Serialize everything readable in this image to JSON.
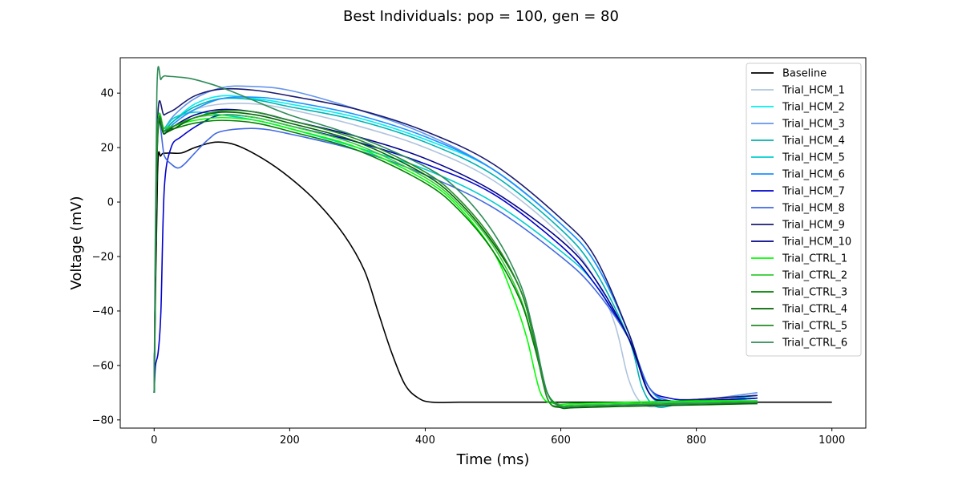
{
  "chart_data": {
    "type": "line",
    "title": "Best Individuals: pop = 100, gen = 80",
    "xlabel": "Time (ms)",
    "ylabel": "Voltage (mV)",
    "xlim": [
      -50,
      1050
    ],
    "ylim": [
      -83,
      53
    ],
    "xticks": [
      0,
      200,
      400,
      600,
      800,
      1000
    ],
    "yticks": [
      -80,
      -60,
      -40,
      -20,
      0,
      20,
      40
    ],
    "legend_position": "top-right",
    "grid": false,
    "series": [
      {
        "name": "Baseline",
        "color": "#000000",
        "x": [
          0,
          5,
          10,
          20,
          40,
          60,
          90,
          120,
          160,
          200,
          240,
          280,
          310,
          330,
          350,
          370,
          390,
          410,
          450,
          500,
          600,
          700,
          800,
          900,
          1000
        ],
        "y": [
          -70,
          10,
          17,
          18,
          18,
          20,
          22,
          21,
          16,
          9,
          0,
          -12,
          -25,
          -40,
          -55,
          -67,
          -72,
          -73.5,
          -73.5,
          -73.5,
          -73.5,
          -73.5,
          -73.5,
          -73.5,
          -73.5
        ]
      },
      {
        "name": "Trial_HCM_1",
        "color": "#b0c4de",
        "x": [
          0,
          5,
          15,
          30,
          60,
          100,
          150,
          200,
          300,
          400,
          500,
          600,
          650,
          680,
          700,
          720,
          750,
          800,
          890
        ],
        "y": [
          -70,
          25,
          27,
          30,
          34,
          36,
          36,
          34,
          28,
          20,
          8,
          -12,
          -28,
          -45,
          -65,
          -74,
          -75,
          -73,
          -70
        ]
      },
      {
        "name": "Trial_HCM_2",
        "color": "#00eeee",
        "x": [
          0,
          5,
          15,
          30,
          60,
          100,
          150,
          200,
          300,
          400,
          500,
          600,
          650,
          700,
          730,
          760,
          800,
          890
        ],
        "y": [
          -70,
          24,
          26,
          30,
          36,
          39,
          38,
          36,
          31,
          23,
          12,
          -8,
          -22,
          -48,
          -70,
          -74,
          -74,
          -71
        ]
      },
      {
        "name": "Trial_HCM_3",
        "color": "#6495ed",
        "x": [
          0,
          5,
          15,
          30,
          60,
          100,
          140,
          200,
          300,
          400,
          500,
          600,
          650,
          700,
          730,
          760,
          800,
          890
        ],
        "y": [
          -70,
          25,
          27,
          32,
          38,
          42,
          42.5,
          41,
          34,
          25,
          12,
          -8,
          -22,
          -48,
          -70,
          -74,
          -73,
          -70
        ]
      },
      {
        "name": "Trial_HCM_4",
        "color": "#00b2b2",
        "x": [
          0,
          5,
          15,
          30,
          60,
          100,
          150,
          200,
          300,
          400,
          500,
          600,
          650,
          700,
          720,
          740,
          770,
          800,
          890
        ],
        "y": [
          -70,
          24,
          26,
          30,
          35,
          38,
          37.5,
          35,
          30,
          22,
          10,
          -10,
          -25,
          -50,
          -68,
          -75,
          -74.5,
          -74,
          -72
        ]
      },
      {
        "name": "Trial_HCM_5",
        "color": "#00ced1",
        "x": [
          0,
          5,
          15,
          30,
          60,
          100,
          150,
          200,
          300,
          400,
          500,
          600,
          650,
          700,
          730,
          760,
          800,
          890
        ],
        "y": [
          -70,
          25,
          27,
          31,
          33,
          32,
          30,
          27,
          20,
          12,
          0,
          -18,
          -30,
          -50,
          -68,
          -74,
          -74,
          -72
        ]
      },
      {
        "name": "Trial_HCM_6",
        "color": "#1e90ff",
        "x": [
          0,
          5,
          15,
          30,
          60,
          100,
          150,
          200,
          300,
          400,
          500,
          600,
          650,
          700,
          730,
          760,
          800,
          890
        ],
        "y": [
          -70,
          23,
          25,
          29,
          34,
          38,
          38.5,
          37,
          32,
          24,
          12,
          -8,
          -22,
          -48,
          -70,
          -74,
          -73.5,
          -72
        ]
      },
      {
        "name": "Trial_HCM_7",
        "color": "#0000cd",
        "x": [
          0,
          2,
          6,
          10,
          15,
          25,
          40,
          70,
          100,
          150,
          200,
          300,
          400,
          500,
          600,
          650,
          700,
          730,
          760,
          800,
          890
        ],
        "y": [
          -70,
          -60,
          -55,
          -40,
          5,
          20,
          24,
          29,
          32,
          31,
          28,
          22,
          14,
          3,
          -16,
          -30,
          -50,
          -68,
          -72,
          -72.5,
          -71
        ]
      },
      {
        "name": "Trial_HCM_8",
        "color": "#4169e1",
        "x": [
          0,
          5,
          15,
          25,
          35,
          45,
          60,
          80,
          100,
          150,
          200,
          300,
          400,
          500,
          600,
          650,
          700,
          730,
          760,
          800,
          890
        ],
        "y": [
          -70,
          25,
          17,
          14,
          12.5,
          14,
          18,
          23,
          26,
          27,
          25,
          19,
          10,
          -2,
          -20,
          -32,
          -50,
          -68,
          -73,
          -73,
          -72
        ]
      },
      {
        "name": "Trial_HCM_9",
        "color": "#191970",
        "x": [
          0,
          5,
          15,
          30,
          60,
          100,
          150,
          200,
          300,
          400,
          500,
          600,
          650,
          700,
          730,
          760,
          800,
          890
        ],
        "y": [
          -70,
          29,
          32,
          34,
          39,
          41.5,
          41,
          39,
          34,
          26,
          14,
          -6,
          -20,
          -48,
          -70,
          -73,
          -72.5,
          -71
        ]
      },
      {
        "name": "Trial_HCM_10",
        "color": "#00008b",
        "x": [
          0,
          5,
          15,
          30,
          60,
          100,
          150,
          200,
          300,
          400,
          500,
          600,
          650,
          700,
          730,
          760,
          800,
          890
        ],
        "y": [
          -70,
          24,
          25,
          28,
          32,
          34,
          33,
          30,
          24,
          16,
          4,
          -14,
          -28,
          -50,
          -70,
          -73,
          -73,
          -72
        ]
      },
      {
        "name": "Trial_CTRL_1",
        "color": "#00ff00",
        "x": [
          0,
          5,
          15,
          30,
          60,
          100,
          150,
          200,
          300,
          400,
          450,
          500,
          530,
          550,
          570,
          590,
          620,
          700,
          800,
          890
        ],
        "y": [
          -70,
          25,
          27,
          28,
          30,
          31,
          30,
          27,
          20,
          8,
          -2,
          -18,
          -35,
          -50,
          -70,
          -74,
          -74,
          -73.5,
          -73,
          -73
        ]
      },
      {
        "name": "Trial_CTRL_2",
        "color": "#32cd32",
        "x": [
          0,
          5,
          15,
          30,
          60,
          100,
          150,
          200,
          300,
          400,
          450,
          500,
          540,
          560,
          580,
          600,
          620,
          700,
          800,
          890
        ],
        "y": [
          -70,
          25,
          27,
          28,
          31,
          32,
          31,
          28,
          21,
          9,
          -1,
          -16,
          -35,
          -52,
          -70,
          -74.5,
          -74.5,
          -74,
          -73.5,
          -73
        ]
      },
      {
        "name": "Trial_CTRL_3",
        "color": "#008000",
        "x": [
          0,
          5,
          15,
          30,
          60,
          100,
          150,
          200,
          300,
          400,
          450,
          500,
          540,
          560,
          580,
          600,
          620,
          700,
          800,
          890
        ],
        "y": [
          -70,
          24,
          26,
          27,
          29,
          30,
          29,
          26,
          19,
          7,
          -3,
          -18,
          -36,
          -52,
          -70,
          -75,
          -75,
          -74.5,
          -74,
          -74
        ]
      },
      {
        "name": "Trial_CTRL_4",
        "color": "#006400",
        "x": [
          0,
          5,
          15,
          30,
          60,
          100,
          150,
          200,
          300,
          400,
          450,
          500,
          540,
          560,
          580,
          600,
          620,
          700,
          800,
          890
        ],
        "y": [
          -70,
          22,
          25,
          27,
          31,
          33,
          32,
          29,
          22,
          10,
          0,
          -15,
          -32,
          -50,
          -72,
          -75.5,
          -75.5,
          -75,
          -74.5,
          -74
        ]
      },
      {
        "name": "Trial_CTRL_5",
        "color": "#228b22",
        "x": [
          0,
          5,
          15,
          30,
          60,
          100,
          150,
          200,
          300,
          400,
          450,
          500,
          540,
          560,
          580,
          600,
          620,
          700,
          800,
          890
        ],
        "y": [
          -70,
          24,
          26,
          28,
          31,
          33.5,
          33,
          30,
          23,
          11,
          1,
          -14,
          -32,
          -50,
          -72,
          -75,
          -75,
          -74.5,
          -74,
          -73.5
        ]
      },
      {
        "name": "Trial_CTRL_6",
        "color": "#2e8b57",
        "x": [
          0,
          4,
          10,
          15,
          20,
          40,
          60,
          100,
          150,
          200,
          300,
          400,
          450,
          500,
          540,
          560,
          580,
          600,
          620,
          700,
          800,
          890
        ],
        "y": [
          -70,
          40,
          45,
          46.3,
          46.2,
          45.8,
          45,
          42,
          37,
          32,
          24,
          13,
          4,
          -11,
          -30,
          -48,
          -70,
          -75,
          -75,
          -74.5,
          -74,
          -73.5
        ]
      }
    ]
  }
}
